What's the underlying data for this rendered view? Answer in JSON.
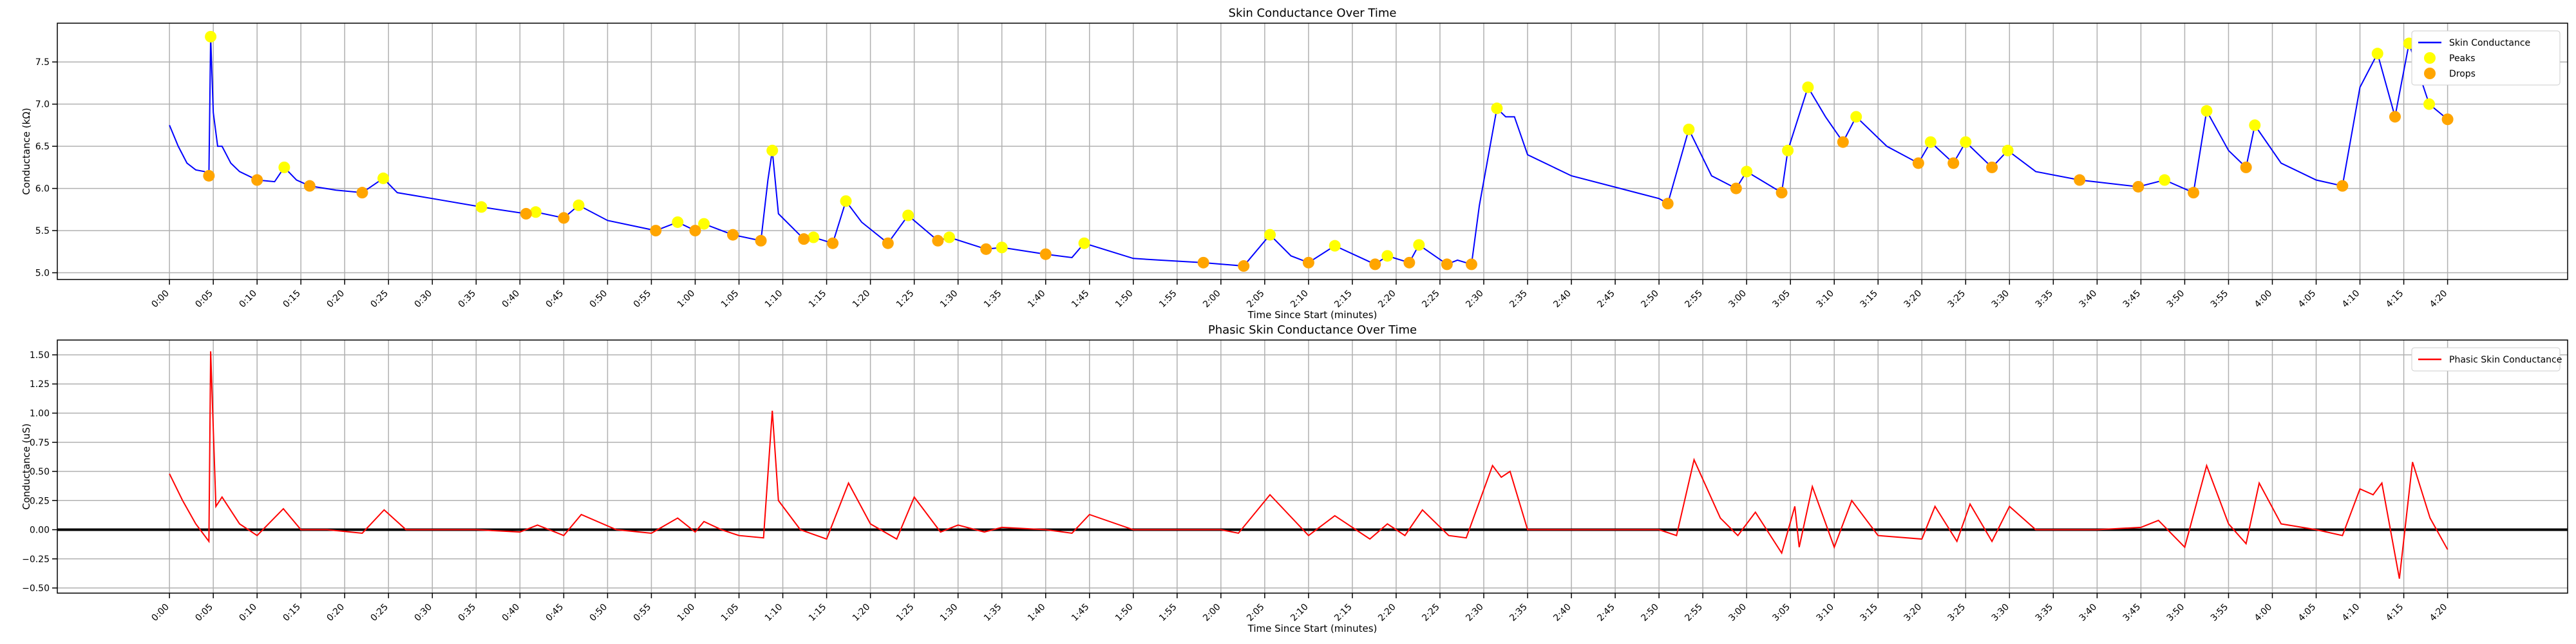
{
  "chart_data": [
    {
      "type": "line",
      "title": "Skin Conductance Over Time",
      "xlabel": "Time Since Start (minutes)",
      "ylabel": "Conductance (kΩ)",
      "xlim": [
        -12.8,
        273.7
      ],
      "ylim": [
        4.92,
        7.96
      ],
      "grid": true,
      "legend": "upper right",
      "xticks": [
        {
          "value": 0,
          "label": "0:00"
        },
        {
          "value": 5,
          "label": "0:05"
        },
        {
          "value": 10,
          "label": "0:10"
        },
        {
          "value": 15,
          "label": "0:15"
        },
        {
          "value": 20,
          "label": "0:20"
        },
        {
          "value": 25,
          "label": "0:25"
        },
        {
          "value": 30,
          "label": "0:30"
        },
        {
          "value": 35,
          "label": "0:35"
        },
        {
          "value": 40,
          "label": "0:40"
        },
        {
          "value": 45,
          "label": "0:45"
        },
        {
          "value": 50,
          "label": "0:50"
        },
        {
          "value": 55,
          "label": "0:55"
        },
        {
          "value": 60,
          "label": "1:00"
        },
        {
          "value": 65,
          "label": "1:05"
        },
        {
          "value": 70,
          "label": "1:10"
        },
        {
          "value": 75,
          "label": "1:15"
        },
        {
          "value": 80,
          "label": "1:20"
        },
        {
          "value": 85,
          "label": "1:25"
        },
        {
          "value": 90,
          "label": "1:30"
        },
        {
          "value": 95,
          "label": "1:35"
        },
        {
          "value": 100,
          "label": "1:40"
        },
        {
          "value": 105,
          "label": "1:45"
        },
        {
          "value": 110,
          "label": "1:50"
        },
        {
          "value": 115,
          "label": "1:55"
        },
        {
          "value": 120,
          "label": "2:00"
        },
        {
          "value": 125,
          "label": "2:05"
        },
        {
          "value": 130,
          "label": "2:10"
        },
        {
          "value": 135,
          "label": "2:15"
        },
        {
          "value": 140,
          "label": "2:20"
        },
        {
          "value": 145,
          "label": "2:25"
        },
        {
          "value": 150,
          "label": "2:30"
        },
        {
          "value": 155,
          "label": "2:35"
        },
        {
          "value": 160,
          "label": "2:40"
        },
        {
          "value": 165,
          "label": "2:45"
        },
        {
          "value": 170,
          "label": "2:50"
        },
        {
          "value": 175,
          "label": "2:55"
        },
        {
          "value": 180,
          "label": "3:00"
        },
        {
          "value": 185,
          "label": "3:05"
        },
        {
          "value": 190,
          "label": "3:10"
        },
        {
          "value": 195,
          "label": "3:15"
        },
        {
          "value": 200,
          "label": "3:20"
        },
        {
          "value": 205,
          "label": "3:25"
        },
        {
          "value": 210,
          "label": "3:30"
        },
        {
          "value": 215,
          "label": "3:35"
        },
        {
          "value": 220,
          "label": "3:40"
        },
        {
          "value": 225,
          "label": "3:45"
        },
        {
          "value": 230,
          "label": "3:50"
        },
        {
          "value": 235,
          "label": "3:55"
        },
        {
          "value": 240,
          "label": "4:00"
        },
        {
          "value": 245,
          "label": "4:05"
        },
        {
          "value": 250,
          "label": "4:10"
        },
        {
          "value": 255,
          "label": "4:15"
        },
        {
          "value": 260,
          "label": "4:20"
        }
      ],
      "yticks": [
        {
          "value": 5.0,
          "label": "5.0"
        },
        {
          "value": 5.5,
          "label": "5.5"
        },
        {
          "value": 6.0,
          "label": "6.0"
        },
        {
          "value": 6.5,
          "label": "6.5"
        },
        {
          "value": 7.0,
          "label": "7.0"
        },
        {
          "value": 7.5,
          "label": "7.5"
        }
      ],
      "series": [
        {
          "name": "Skin Conductance",
          "type": "line",
          "color": "#0000ff",
          "x": [
            0,
            1,
            2,
            3,
            4,
            4.5,
            4.7,
            5,
            5.5,
            6,
            7,
            8,
            10,
            12,
            13.1,
            14.5,
            16,
            19,
            22,
            24.4,
            26,
            30,
            35.6,
            40.7,
            41.8,
            45,
            46.7,
            50,
            55.5,
            58,
            60,
            61,
            64.3,
            67.5,
            68.3,
            68.8,
            69.5,
            72.4,
            73.5,
            75.7,
            77.2,
            79,
            82,
            84.3,
            87.7,
            89,
            93.2,
            95,
            100,
            103,
            104.4,
            110,
            113,
            118,
            122.6,
            125.6,
            128,
            130,
            133,
            137.6,
            139,
            141.5,
            142.6,
            145.8,
            147,
            148.6,
            149.5,
            151.5,
            152.5,
            153.5,
            155,
            160,
            170,
            171,
            173.4,
            176,
            178.8,
            180,
            184,
            184.7,
            187,
            189,
            191,
            192.5,
            196,
            199.6,
            201,
            203.6,
            205,
            208,
            209.8,
            213,
            218,
            224.7,
            227.7,
            231,
            232.5,
            235,
            237,
            238,
            241,
            245,
            248,
            250,
            252,
            254,
            255.6,
            257.9,
            260
          ],
          "values": [
            6.75,
            6.5,
            6.3,
            6.22,
            6.2,
            6.15,
            7.8,
            6.9,
            6.5,
            6.5,
            6.3,
            6.2,
            6.1,
            6.08,
            6.25,
            6.1,
            6.03,
            5.98,
            5.95,
            6.12,
            5.95,
            5.88,
            5.78,
            5.7,
            5.72,
            5.65,
            5.8,
            5.62,
            5.5,
            5.6,
            5.5,
            5.58,
            5.45,
            5.38,
            6.1,
            6.45,
            5.7,
            5.4,
            5.42,
            5.35,
            5.85,
            5.6,
            5.35,
            5.68,
            5.38,
            5.42,
            5.28,
            5.3,
            5.22,
            5.18,
            5.35,
            5.17,
            5.15,
            5.12,
            5.08,
            5.45,
            5.2,
            5.12,
            5.32,
            5.1,
            5.2,
            5.12,
            5.33,
            5.1,
            5.15,
            5.1,
            5.8,
            6.95,
            6.85,
            6.85,
            6.4,
            6.15,
            5.88,
            5.82,
            6.7,
            6.15,
            6.0,
            6.2,
            5.95,
            6.45,
            7.2,
            6.85,
            6.55,
            6.85,
            6.5,
            6.3,
            6.55,
            6.3,
            6.55,
            6.25,
            6.45,
            6.2,
            6.1,
            6.02,
            6.1,
            5.95,
            6.92,
            6.45,
            6.25,
            6.75,
            6.3,
            6.1,
            6.03,
            7.2,
            7.6,
            6.85,
            7.72,
            7.0,
            6.82
          ]
        },
        {
          "name": "Peaks",
          "type": "scatter",
          "color": "#ffff00",
          "x": [
            4.7,
            13.1,
            24.4,
            35.6,
            41.8,
            46.7,
            58,
            61,
            68.8,
            73.5,
            77.2,
            84.3,
            89,
            95,
            104.4,
            125.6,
            133,
            139,
            142.6,
            151.5,
            173.4,
            180,
            184.7,
            187,
            192.5,
            201,
            205,
            209.8,
            227.7,
            232.5,
            238,
            252,
            255.6,
            257.9
          ],
          "values": [
            7.8,
            6.25,
            6.12,
            5.78,
            5.72,
            5.8,
            5.6,
            5.58,
            6.45,
            5.42,
            5.85,
            5.68,
            5.42,
            5.3,
            5.35,
            5.45,
            5.32,
            5.2,
            5.33,
            6.95,
            6.7,
            6.2,
            6.45,
            7.2,
            6.85,
            6.55,
            6.55,
            6.45,
            6.1,
            6.92,
            6.75,
            7.6,
            7.72,
            7.0
          ]
        },
        {
          "name": "Drops",
          "type": "scatter",
          "color": "#ffa500",
          "x": [
            4.5,
            10,
            16,
            22,
            40.7,
            45,
            55.5,
            60,
            64.3,
            67.5,
            72.4,
            75.7,
            82,
            87.7,
            93.2,
            100,
            118,
            122.6,
            130,
            137.6,
            141.5,
            145.8,
            148.6,
            171,
            178.8,
            184,
            191,
            199.6,
            203.6,
            208,
            218,
            224.7,
            231,
            237,
            248,
            254,
            260
          ],
          "values": [
            6.15,
            6.1,
            6.03,
            5.95,
            5.7,
            5.65,
            5.5,
            5.5,
            5.45,
            5.38,
            5.4,
            5.35,
            5.35,
            5.38,
            5.28,
            5.22,
            5.12,
            5.08,
            5.12,
            5.1,
            5.12,
            5.1,
            5.1,
            5.82,
            6.0,
            5.95,
            6.55,
            6.3,
            6.3,
            6.25,
            6.1,
            6.02,
            5.95,
            6.25,
            6.03,
            6.85,
            6.82
          ]
        }
      ]
    },
    {
      "type": "line",
      "title": "Phasic Skin Conductance Over Time",
      "xlabel": "Time Since Start (minutes)",
      "ylabel": "Conductance (uS)",
      "xlim": [
        -12.8,
        273.7
      ],
      "ylim": [
        -0.544,
        1.627
      ],
      "grid": true,
      "legend": "upper right",
      "hline": 0,
      "xticks": [
        {
          "value": 0,
          "label": "0:00"
        },
        {
          "value": 5,
          "label": "0:05"
        },
        {
          "value": 10,
          "label": "0:10"
        },
        {
          "value": 15,
          "label": "0:15"
        },
        {
          "value": 20,
          "label": "0:20"
        },
        {
          "value": 25,
          "label": "0:25"
        },
        {
          "value": 30,
          "label": "0:30"
        },
        {
          "value": 35,
          "label": "0:35"
        },
        {
          "value": 40,
          "label": "0:40"
        },
        {
          "value": 45,
          "label": "0:45"
        },
        {
          "value": 50,
          "label": "0:50"
        },
        {
          "value": 55,
          "label": "0:55"
        },
        {
          "value": 60,
          "label": "1:00"
        },
        {
          "value": 65,
          "label": "1:05"
        },
        {
          "value": 70,
          "label": "1:10"
        },
        {
          "value": 75,
          "label": "1:15"
        },
        {
          "value": 80,
          "label": "1:20"
        },
        {
          "value": 85,
          "label": "1:25"
        },
        {
          "value": 90,
          "label": "1:30"
        },
        {
          "value": 95,
          "label": "1:35"
        },
        {
          "value": 100,
          "label": "1:40"
        },
        {
          "value": 105,
          "label": "1:45"
        },
        {
          "value": 110,
          "label": "1:50"
        },
        {
          "value": 115,
          "label": "1:55"
        },
        {
          "value": 120,
          "label": "2:00"
        },
        {
          "value": 125,
          "label": "2:05"
        },
        {
          "value": 130,
          "label": "2:10"
        },
        {
          "value": 135,
          "label": "2:15"
        },
        {
          "value": 140,
          "label": "2:20"
        },
        {
          "value": 145,
          "label": "2:25"
        },
        {
          "value": 150,
          "label": "2:30"
        },
        {
          "value": 155,
          "label": "2:35"
        },
        {
          "value": 160,
          "label": "2:40"
        },
        {
          "value": 165,
          "label": "2:45"
        },
        {
          "value": 170,
          "label": "2:50"
        },
        {
          "value": 175,
          "label": "2:55"
        },
        {
          "value": 180,
          "label": "3:00"
        },
        {
          "value": 185,
          "label": "3:05"
        },
        {
          "value": 190,
          "label": "3:10"
        },
        {
          "value": 195,
          "label": "3:15"
        },
        {
          "value": 200,
          "label": "3:20"
        },
        {
          "value": 205,
          "label": "3:25"
        },
        {
          "value": 210,
          "label": "3:30"
        },
        {
          "value": 215,
          "label": "3:35"
        },
        {
          "value": 220,
          "label": "3:40"
        },
        {
          "value": 225,
          "label": "3:45"
        },
        {
          "value": 230,
          "label": "3:50"
        },
        {
          "value": 235,
          "label": "3:55"
        },
        {
          "value": 240,
          "label": "4:00"
        },
        {
          "value": 245,
          "label": "4:05"
        },
        {
          "value": 250,
          "label": "4:10"
        },
        {
          "value": 255,
          "label": "4:15"
        },
        {
          "value": 260,
          "label": "4:20"
        }
      ],
      "yticks": [
        {
          "value": -0.5,
          "label": "−0.50"
        },
        {
          "value": -0.25,
          "label": "−0.25"
        },
        {
          "value": 0,
          "label": "0.00"
        },
        {
          "value": 0.25,
          "label": "0.25"
        },
        {
          "value": 0.5,
          "label": "0.50"
        },
        {
          "value": 0.75,
          "label": "0.75"
        },
        {
          "value": 1.0,
          "label": "1.00"
        },
        {
          "value": 1.25,
          "label": "1.25"
        },
        {
          "value": 1.5,
          "label": "1.50"
        }
      ],
      "series": [
        {
          "name": "Phasic Skin Conductance",
          "type": "line",
          "color": "#ff0000",
          "x": [
            0,
            1.5,
            3,
            4.5,
            4.7,
            5.3,
            6,
            8,
            10,
            13,
            15,
            18,
            22,
            24.5,
            27,
            35,
            40,
            42,
            45,
            47,
            51,
            55,
            58,
            60,
            61,
            63,
            65,
            67.8,
            68.8,
            69.5,
            72,
            75,
            77.5,
            80,
            83,
            85,
            88,
            90,
            93,
            95,
            100,
            103,
            105,
            110,
            120,
            122,
            125.6,
            130,
            133,
            137,
            139,
            141,
            143,
            146,
            148,
            151,
            152,
            153,
            155,
            160,
            170,
            172,
            174,
            177,
            179,
            181,
            184,
            185.5,
            186,
            187.5,
            190,
            192,
            195,
            200,
            201.5,
            204,
            205.5,
            208,
            210,
            213,
            220,
            225,
            227,
            230,
            232.5,
            235,
            237,
            238.5,
            241,
            245,
            248,
            250,
            251.5,
            252.5,
            254.5,
            256,
            258,
            260
          ],
          "values": [
            0.48,
            0.25,
            0.05,
            -0.1,
            1.53,
            0.2,
            0.28,
            0.05,
            -0.05,
            0.18,
            0,
            0,
            -0.03,
            0.17,
            0,
            0,
            -0.02,
            0.04,
            -0.05,
            0.13,
            0,
            -0.03,
            0.1,
            -0.02,
            0.07,
            0,
            -0.05,
            -0.07,
            1.02,
            0.25,
            0,
            -0.08,
            0.4,
            0.05,
            -0.08,
            0.28,
            -0.02,
            0.04,
            -0.02,
            0.02,
            0,
            -0.03,
            0.13,
            0,
            0,
            -0.03,
            0.3,
            -0.05,
            0.12,
            -0.08,
            0.05,
            -0.05,
            0.17,
            -0.05,
            -0.07,
            0.55,
            0.45,
            0.5,
            0,
            0,
            0,
            -0.05,
            0.6,
            0.1,
            -0.05,
            0.15,
            -0.2,
            0.2,
            -0.15,
            0.37,
            -0.15,
            0.25,
            -0.05,
            -0.08,
            0.2,
            -0.1,
            0.22,
            -0.1,
            0.2,
            0,
            0,
            0.02,
            0.08,
            -0.15,
            0.55,
            0.05,
            -0.12,
            0.4,
            0.05,
            0,
            -0.05,
            0.35,
            0.3,
            0.4,
            -0.42,
            0.58,
            0.1,
            -0.17
          ]
        }
      ]
    }
  ]
}
